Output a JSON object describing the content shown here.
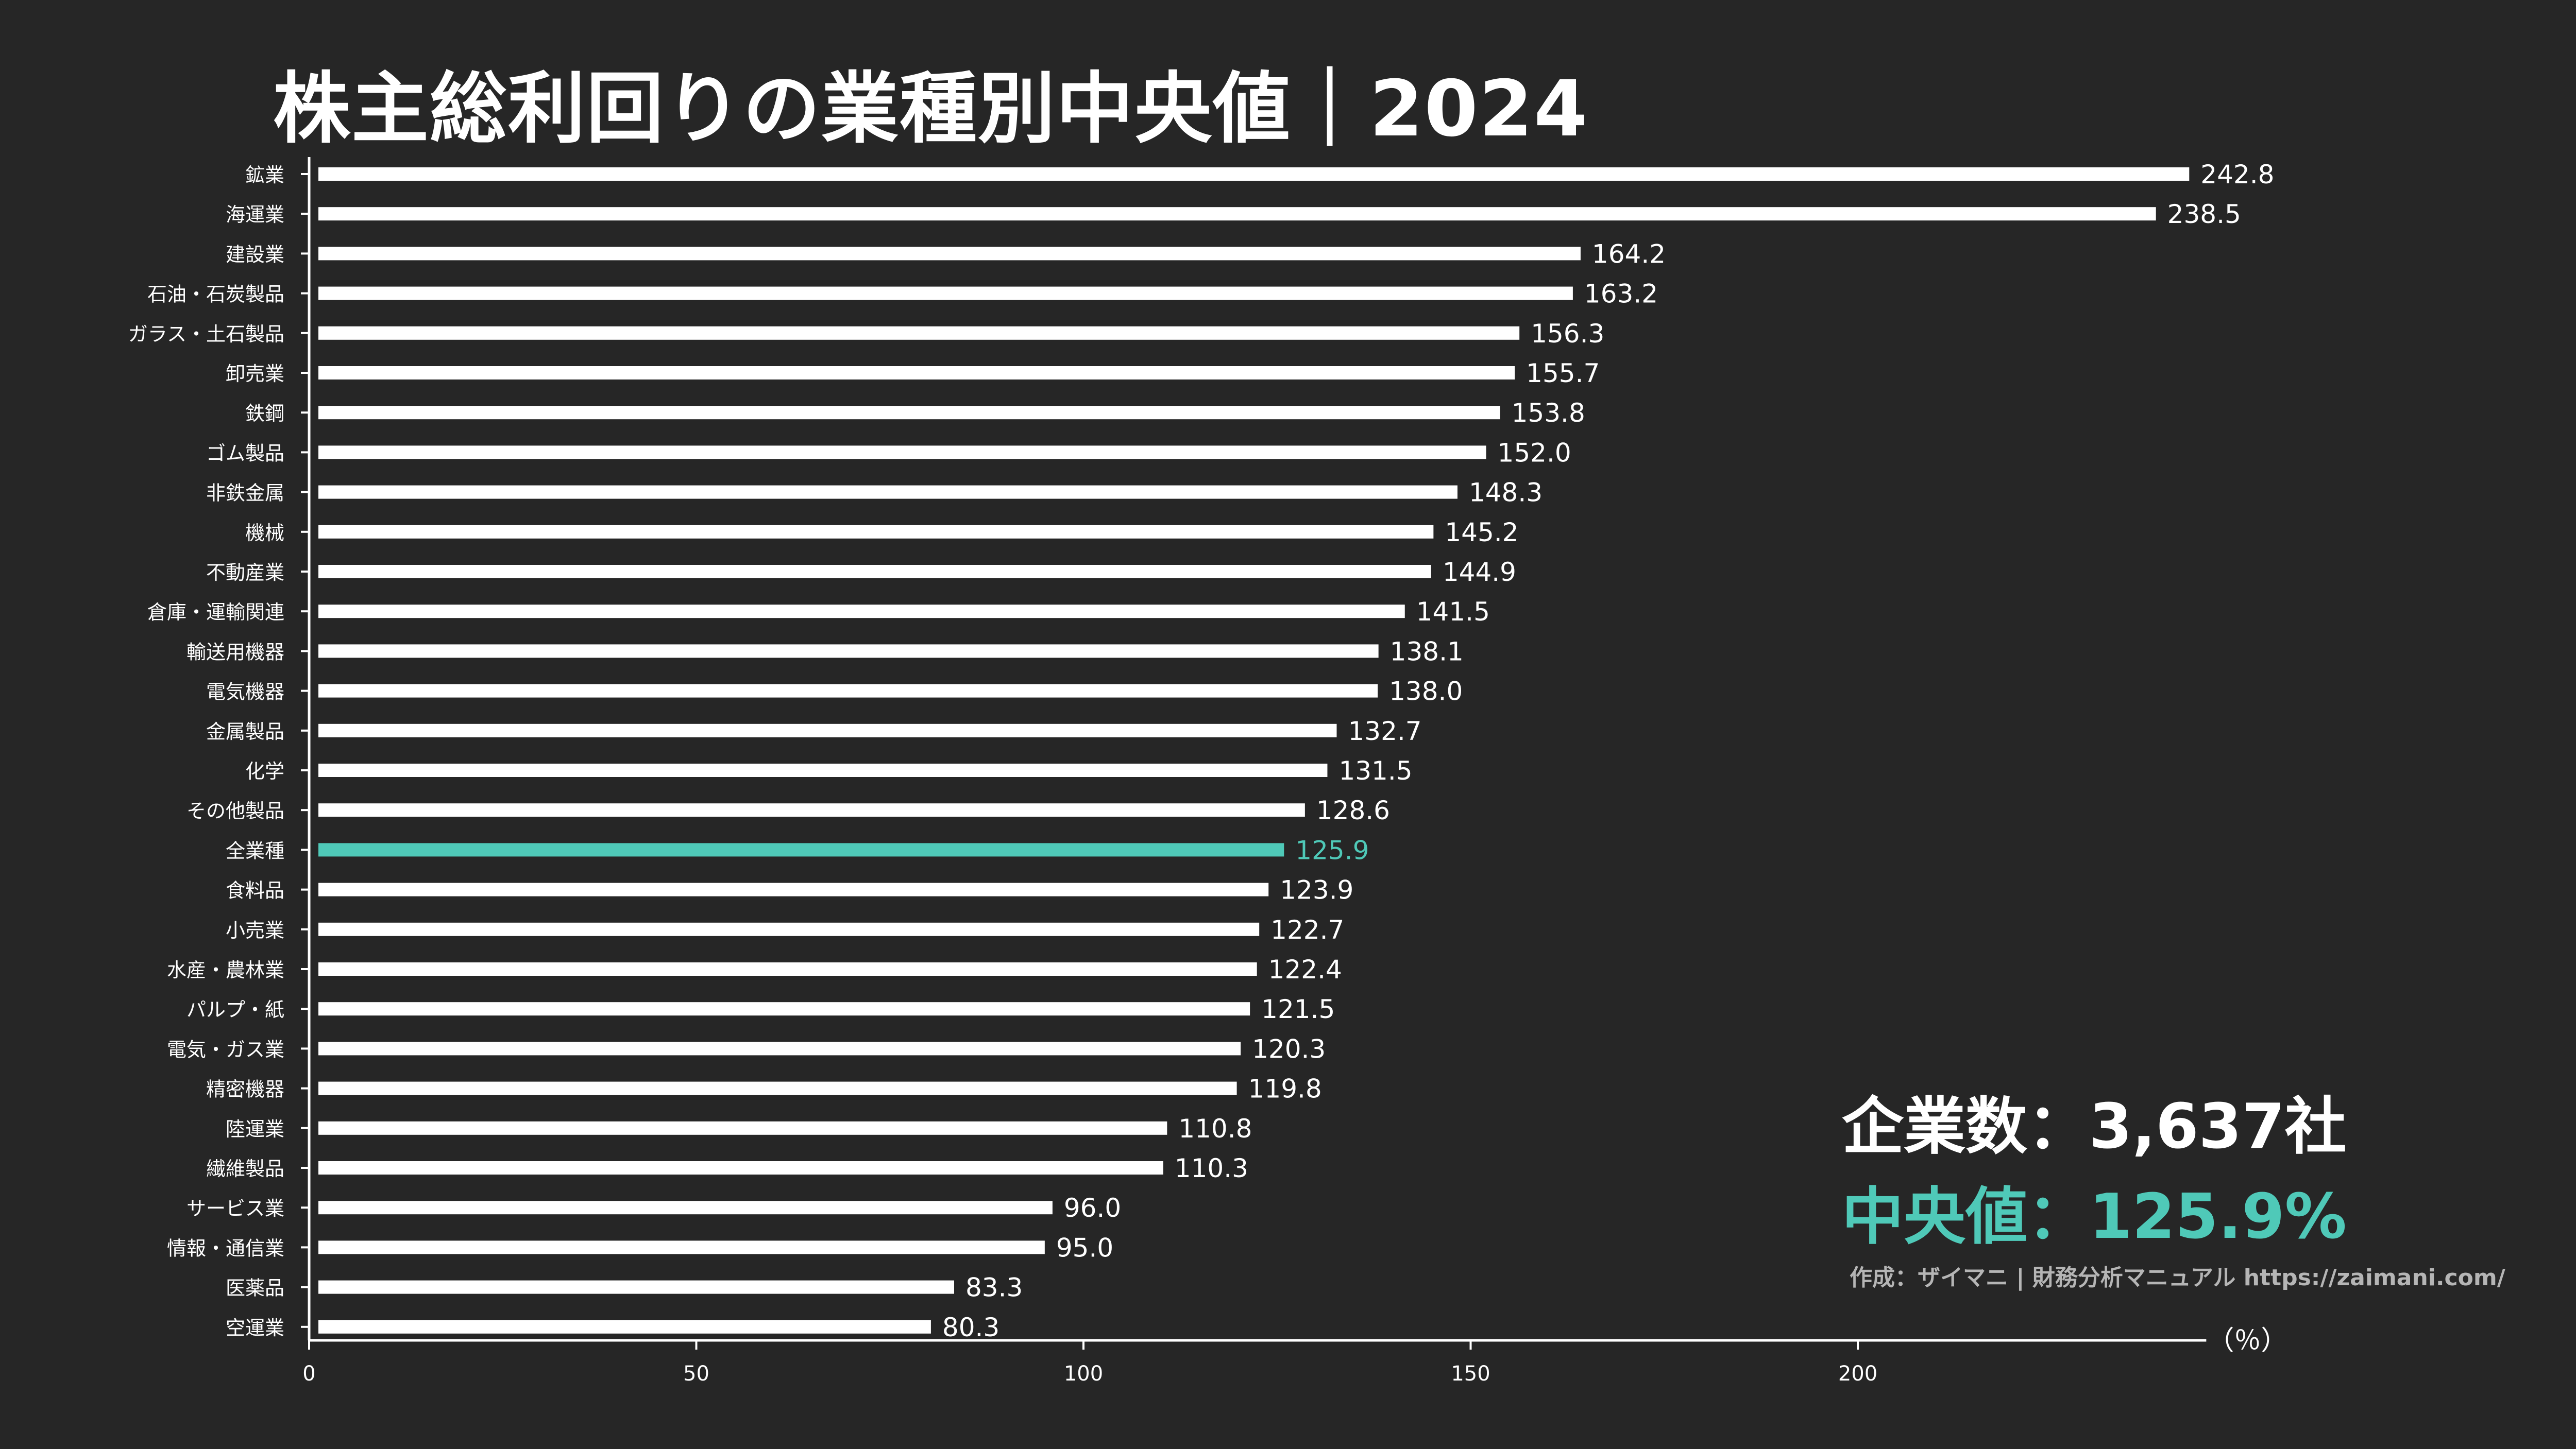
{
  "title": "株主総利回りの業種別中央値｜2024",
  "info": {
    "company_count_label": "企業数：3,637社",
    "median_label": "中央値：125.9%"
  },
  "credit": "作成：ザイマニ | 財務分析マニュアル https://zaimani.com/",
  "colors": {
    "background": "#262626",
    "bar": "#ffffff",
    "highlight": "#4fc9b8",
    "text": "#ffffff",
    "credit": "#b5b5b5"
  },
  "chart_data": {
    "type": "bar",
    "orientation": "horizontal",
    "unit_label": "（％）",
    "xlim": [
      0,
      245
    ],
    "x_ticks": [
      0,
      50,
      100,
      150,
      200
    ],
    "grid": false,
    "highlight_category": "全業種",
    "categories": [
      "鉱業",
      "海運業",
      "建設業",
      "石油・石炭製品",
      "ガラス・土石製品",
      "卸売業",
      "鉄鋼",
      "ゴム製品",
      "非鉄金属",
      "機械",
      "不動産業",
      "倉庫・運輸関連",
      "輸送用機器",
      "電気機器",
      "金属製品",
      "化学",
      "その他製品",
      "全業種",
      "食料品",
      "小売業",
      "水産・農林業",
      "パルプ・紙",
      "電気・ガス業",
      "精密機器",
      "陸運業",
      "繊維製品",
      "サービス業",
      "情報・通信業",
      "医薬品",
      "空運業"
    ],
    "values": [
      242.8,
      238.5,
      164.2,
      163.2,
      156.3,
      155.7,
      153.8,
      152.0,
      148.3,
      145.2,
      144.9,
      141.5,
      138.1,
      138.0,
      132.7,
      131.5,
      128.6,
      125.9,
      123.9,
      122.7,
      122.4,
      121.5,
      120.3,
      119.8,
      110.8,
      110.3,
      96.0,
      95.0,
      83.3,
      80.3
    ]
  }
}
